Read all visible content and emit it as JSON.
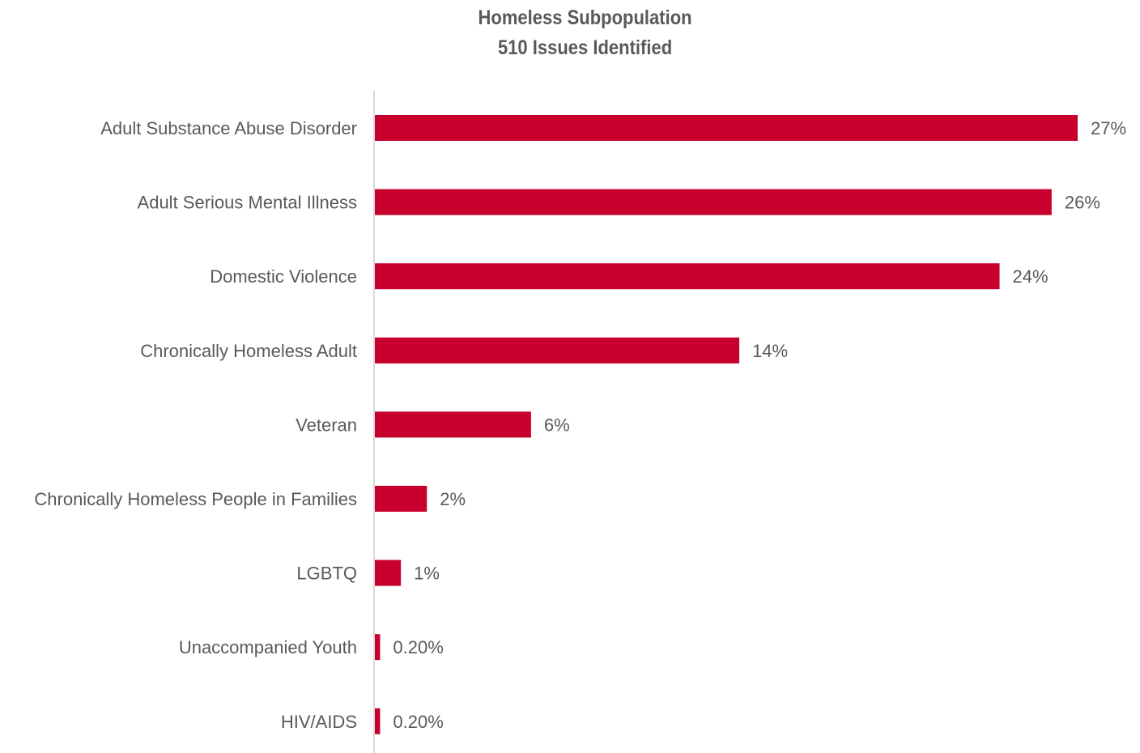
{
  "chart_data": {
    "type": "bar",
    "orientation": "horizontal",
    "title": [
      "Homeless Subpopulation",
      "510 Issues Identified"
    ],
    "categories": [
      "Adult Substance Abuse Disorder",
      "Adult Serious Mental Illness",
      "Domestic Violence",
      "Chronically Homeless Adult",
      "Veteran",
      "Chronically Homeless People in Families",
      "LGBTQ",
      "Unaccompanied Youth",
      "HIV/AIDS"
    ],
    "values": [
      27,
      26,
      24,
      14,
      6,
      2,
      1,
      0.2,
      0.2
    ],
    "data_labels": [
      "27%",
      "26%",
      "24%",
      "14%",
      "6%",
      "2%",
      "1%",
      "0.20%",
      "0.20%"
    ],
    "xlim": [
      0,
      27
    ],
    "grid": false,
    "legend": "none",
    "bar_color": "#C8002E",
    "axis_color": "#D9D9D9",
    "label_color": "#595959"
  }
}
